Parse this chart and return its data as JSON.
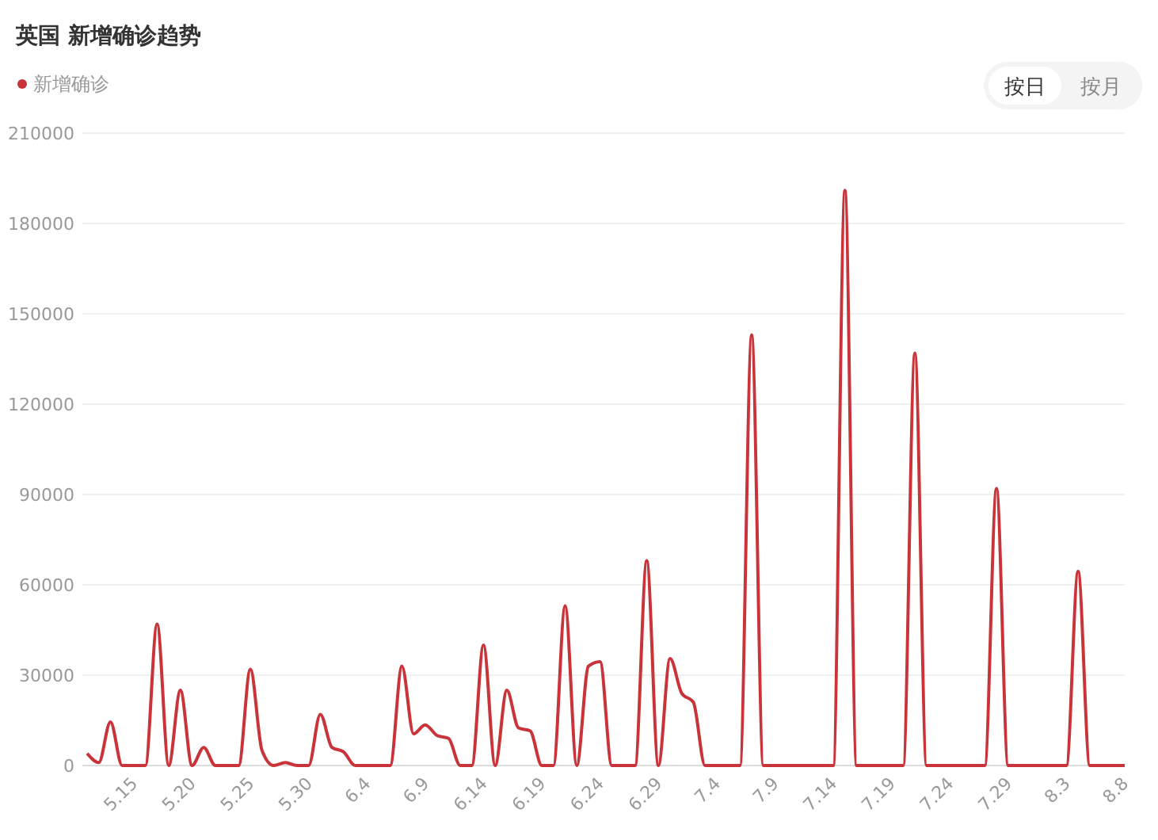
{
  "chart_data": {
    "type": "line",
    "title": "英国 新增确诊趋势",
    "annotations": [
      "按日",
      "按月"
    ],
    "categories": [
      null,
      null,
      null,
      null,
      "5.15",
      null,
      null,
      null,
      null,
      "5.20",
      null,
      null,
      null,
      null,
      "5.25",
      null,
      null,
      null,
      null,
      "5.30",
      null,
      null,
      null,
      null,
      "6.4",
      null,
      null,
      null,
      null,
      "6.9",
      null,
      null,
      null,
      null,
      "6.14",
      null,
      null,
      null,
      null,
      "6.19",
      null,
      null,
      null,
      null,
      "6.24",
      null,
      null,
      null,
      null,
      "6.29",
      null,
      null,
      null,
      null,
      "7.4",
      null,
      null,
      null,
      null,
      "7.9",
      null,
      null,
      null,
      null,
      "7.14",
      null,
      null,
      null,
      null,
      "7.19",
      null,
      null,
      null,
      null,
      "7.24",
      null,
      null,
      null,
      null,
      "7.29",
      null,
      null,
      null,
      null,
      "8.3",
      null,
      null,
      null,
      null,
      "8.8"
    ],
    "series": [
      {
        "name": "新增确诊",
        "color": "#c9343b",
        "values": [
          4000,
          1000,
          14500,
          0,
          0,
          0,
          47000,
          0,
          25000,
          0,
          6000,
          0,
          0,
          0,
          32000,
          5000,
          0,
          1000,
          0,
          0,
          17000,
          6000,
          4500,
          0,
          0,
          0,
          0,
          33000,
          10500,
          13500,
          10000,
          9000,
          0,
          0,
          40000,
          0,
          25000,
          12500,
          11500,
          0,
          0,
          53000,
          0,
          33000,
          34500,
          0,
          0,
          0,
          68000,
          0,
          35500,
          24000,
          21000,
          0,
          0,
          0,
          0,
          143000,
          0,
          0,
          0,
          0,
          0,
          0,
          0,
          191000,
          0,
          0,
          0,
          0,
          0,
          137000,
          0,
          0,
          0,
          0,
          0,
          0,
          92000,
          0,
          0,
          0,
          0,
          0,
          0,
          64500,
          0,
          0,
          0,
          0
        ]
      }
    ],
    "ylim": [
      0,
      210000
    ],
    "yticks": [
      0,
      30000,
      60000,
      90000,
      120000,
      150000,
      180000,
      210000
    ],
    "grid": "y",
    "legend": "top left",
    "marker": "none",
    "line_style": "solid"
  }
}
